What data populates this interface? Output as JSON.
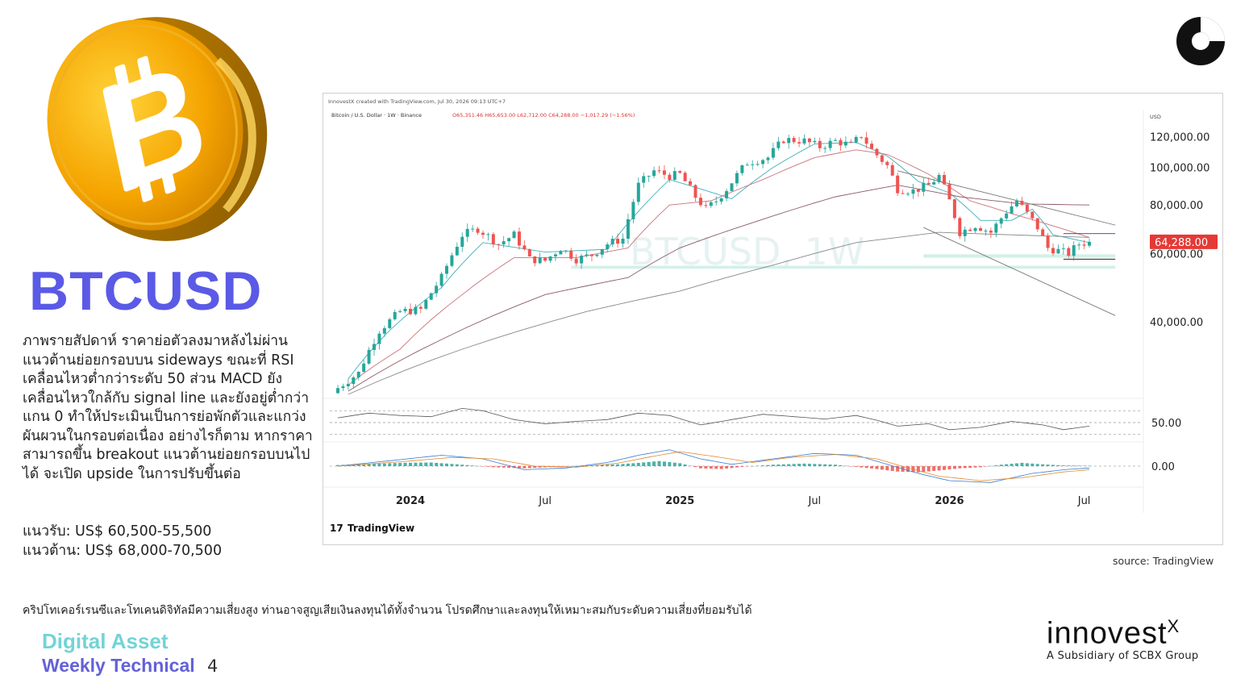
{
  "page": {
    "title": "BTCUSD",
    "description": "ภาพรายสัปดาห์ ราคาย่อตัวลงมาหลังไม่ผ่านแนวต้านย่อยกรอบบน sideways ขณะที่ RSI เคลื่อนไหวต่ำกว่าระดับ 50 ส่วน MACD ยังเคลื่อนไหวใกล้กับ signal line และยังอยู่ต่ำกว่าแกน 0 ทำให้ประเมินเป็นการย่อพักตัวและแกว่งผันผวนในกรอบต่อเนื่อง อย่างไรก็ตาม หากราคาสามารถขึ้น breakout แนวต้านย่อยกรอบบนไปได้ จะเปิด upside ในการปรับขึ้นต่อ",
    "support": "แนวรับ: US$ 60,500-55,500",
    "resistance": "แนวต้าน: US$ 68,000-70,500",
    "source": "source: TradingView",
    "disclaimer": "คริปโทเคอร์เรนซีและโทเคนดิจิทัลมีความเสี่ยงสูง ท่านอาจสูญเสียเงินลงทุนได้ทั้งจำนวน โปรดศึกษาและลงทุนให้เหมาะสมกับระดับความเสี่ยงที่ยอมรับได้",
    "footer_line1": "Digital Asset",
    "footer_line2": "Weekly Technical",
    "page_number": "4",
    "brand_name": "innovest",
    "brand_sup": "X",
    "brand_sub": "A Subsidiary of SCBX Group"
  },
  "chart_data": {
    "type": "candlestick",
    "header_line": "InnovestX created with TradingView.com, Jul 30, 2026 09:13 UTC+7",
    "symbol_line": "Bitcoin / U.S. Dollar · 1W · Binance",
    "ohlc_text": "O65,351.46 H65,653.00 L62,712.00 C64,288.00 −1,017.29 (−1.56%)",
    "currency_label": "USD",
    "watermark": "BTCUSD, 1W",
    "last_price": "64,288.00",
    "last_price_value": 64288,
    "y_ticks": [
      {
        "value": 120000,
        "label": "120,000.00"
      },
      {
        "value": 100000,
        "label": "100,000.00"
      },
      {
        "value": 80000,
        "label": "80,000.00"
      },
      {
        "value": 60000,
        "label": "60,000.00"
      },
      {
        "value": 40000,
        "label": "40,000.00"
      }
    ],
    "x_ticks": [
      {
        "label": "2024",
        "bold": true,
        "week": 14
      },
      {
        "label": "Jul",
        "bold": false,
        "week": 40
      },
      {
        "label": "2025",
        "bold": true,
        "week": 66
      },
      {
        "label": "Jul",
        "bold": false,
        "week": 92
      },
      {
        "label": "2026",
        "bold": true,
        "week": 118
      },
      {
        "label": "Jul",
        "bold": false,
        "week": 144
      }
    ],
    "rsi_level_label": "50.00",
    "macd_zero_label": "0.00",
    "close_path": [
      [
        0,
        27000
      ],
      [
        4,
        29500
      ],
      [
        8,
        38000
      ],
      [
        12,
        42500
      ],
      [
        16,
        43000
      ],
      [
        20,
        52000
      ],
      [
        24,
        67000
      ],
      [
        27,
        69500
      ],
      [
        31,
        63500
      ],
      [
        34,
        67000
      ],
      [
        37,
        58000
      ],
      [
        40,
        57500
      ],
      [
        43,
        62000
      ],
      [
        46,
        58000
      ],
      [
        49,
        59500
      ],
      [
        52,
        63500
      ],
      [
        55,
        65500
      ],
      [
        58,
        90000
      ],
      [
        61,
        98000
      ],
      [
        64,
        95000
      ],
      [
        66,
        96000
      ],
      [
        69,
        84000
      ],
      [
        71,
        78000
      ],
      [
        73,
        82000
      ],
      [
        75,
        88000
      ],
      [
        79,
        103000
      ],
      [
        83,
        106000
      ],
      [
        86,
        118000
      ],
      [
        90,
        117000
      ],
      [
        93,
        113000
      ],
      [
        96,
        117000
      ],
      [
        99,
        114000
      ],
      [
        101,
        121000
      ],
      [
        103,
        111000
      ],
      [
        106,
        101000
      ],
      [
        108,
        88000
      ],
      [
        111,
        87000
      ],
      [
        114,
        90000
      ],
      [
        116,
        95000
      ],
      [
        118,
        82000
      ],
      [
        120,
        68000
      ],
      [
        123,
        71000
      ],
      [
        126,
        68000
      ],
      [
        129,
        77000
      ],
      [
        131,
        82000
      ],
      [
        133,
        76000
      ],
      [
        135,
        70000
      ],
      [
        137,
        62000
      ],
      [
        139,
        61000
      ],
      [
        141,
        60000
      ],
      [
        143,
        63500
      ],
      [
        145,
        64288
      ]
    ],
    "moving_averages": [
      {
        "name": "fast",
        "color": "#40b0b8",
        "path": [
          [
            2,
            28500
          ],
          [
            10,
            38000
          ],
          [
            20,
            49000
          ],
          [
            28,
            64000
          ],
          [
            40,
            60500
          ],
          [
            52,
            61500
          ],
          [
            58,
            77000
          ],
          [
            64,
            93000
          ],
          [
            70,
            88000
          ],
          [
            76,
            83000
          ],
          [
            84,
            100000
          ],
          [
            92,
            115000
          ],
          [
            100,
            116000
          ],
          [
            106,
            107000
          ],
          [
            112,
            92000
          ],
          [
            118,
            86000
          ],
          [
            124,
            73000
          ],
          [
            130,
            73000
          ],
          [
            134,
            78000
          ],
          [
            138,
            67000
          ],
          [
            145,
            64000
          ]
        ]
      },
      {
        "name": "mid",
        "color": "#c9737c",
        "path": [
          [
            2,
            27500
          ],
          [
            12,
            34000
          ],
          [
            24,
            47000
          ],
          [
            34,
            58500
          ],
          [
            46,
            58500
          ],
          [
            56,
            62000
          ],
          [
            64,
            80000
          ],
          [
            72,
            82000
          ],
          [
            82,
            93000
          ],
          [
            92,
            106000
          ],
          [
            100,
            111000
          ],
          [
            106,
            108000
          ],
          [
            114,
            96000
          ],
          [
            122,
            82000
          ],
          [
            130,
            76000
          ],
          [
            136,
            72000
          ],
          [
            145,
            66000
          ]
        ]
      },
      {
        "name": "slow",
        "color": "#8a5a6a",
        "path": [
          [
            2,
            26500
          ],
          [
            20,
            36000
          ],
          [
            40,
            47000
          ],
          [
            56,
            52000
          ],
          [
            66,
            62000
          ],
          [
            80,
            72000
          ],
          [
            96,
            84000
          ],
          [
            108,
            90000
          ],
          [
            120,
            84000
          ],
          [
            132,
            80500
          ],
          [
            145,
            80000
          ]
        ]
      },
      {
        "name": "long",
        "color": "#888888",
        "path": [
          [
            2,
            26000
          ],
          [
            24,
            34000
          ],
          [
            48,
            42500
          ],
          [
            66,
            48000
          ],
          [
            84,
            56000
          ],
          [
            100,
            64000
          ],
          [
            116,
            68000
          ],
          [
            130,
            67000
          ],
          [
            145,
            66000
          ]
        ]
      }
    ],
    "trend_lines": [
      {
        "from": [
          108,
          98000
        ],
        "to": [
          150,
          71000
        ],
        "color": "#777777"
      },
      {
        "from": [
          113,
          70000
        ],
        "to": [
          150,
          41500
        ],
        "color": "#777777"
      },
      {
        "from": [
          140,
          67500
        ],
        "to": [
          150,
          67500
        ],
        "color": "#2a3f9a"
      },
      {
        "from": [
          140,
          58000
        ],
        "to": [
          150,
          58000
        ],
        "color": "#222222"
      }
    ],
    "support_zones": [
      {
        "from": 113,
        "to": 150,
        "low": 58500,
        "high": 59700
      },
      {
        "from": 45,
        "to": 150,
        "low": 54800,
        "high": 55800
      }
    ],
    "rsi_path": [
      [
        0,
        58
      ],
      [
        6,
        66
      ],
      [
        12,
        62
      ],
      [
        18,
        60
      ],
      [
        24,
        74
      ],
      [
        28,
        70
      ],
      [
        34,
        55
      ],
      [
        40,
        48
      ],
      [
        46,
        52
      ],
      [
        52,
        55
      ],
      [
        58,
        66
      ],
      [
        64,
        62
      ],
      [
        70,
        46
      ],
      [
        76,
        55
      ],
      [
        82,
        64
      ],
      [
        88,
        60
      ],
      [
        94,
        56
      ],
      [
        100,
        62
      ],
      [
        104,
        54
      ],
      [
        108,
        44
      ],
      [
        114,
        48
      ],
      [
        118,
        38
      ],
      [
        124,
        42
      ],
      [
        130,
        52
      ],
      [
        136,
        46
      ],
      [
        140,
        38
      ],
      [
        145,
        44
      ]
    ],
    "macd_line": [
      [
        0,
        0
      ],
      [
        10,
        1.5
      ],
      [
        20,
        3
      ],
      [
        28,
        2
      ],
      [
        36,
        -1
      ],
      [
        44,
        -0.5
      ],
      [
        52,
        1
      ],
      [
        58,
        3
      ],
      [
        64,
        4.5
      ],
      [
        70,
        2
      ],
      [
        76,
        0.5
      ],
      [
        84,
        2
      ],
      [
        92,
        3.5
      ],
      [
        100,
        3
      ],
      [
        106,
        0.5
      ],
      [
        112,
        -2
      ],
      [
        118,
        -4
      ],
      [
        126,
        -4.5
      ],
      [
        134,
        -2
      ],
      [
        140,
        -1
      ],
      [
        145,
        -0.5
      ]
    ],
    "signal_line": [
      [
        0,
        0
      ],
      [
        12,
        1.2
      ],
      [
        22,
        2.4
      ],
      [
        30,
        2
      ],
      [
        38,
        0
      ],
      [
        46,
        -0.3
      ],
      [
        54,
        0.8
      ],
      [
        60,
        2.5
      ],
      [
        66,
        4
      ],
      [
        72,
        2.8
      ],
      [
        80,
        1
      ],
      [
        88,
        2.5
      ],
      [
        96,
        3.2
      ],
      [
        104,
        2
      ],
      [
        110,
        -0.5
      ],
      [
        116,
        -2.8
      ],
      [
        124,
        -4
      ],
      [
        132,
        -3.2
      ],
      [
        140,
        -1.6
      ],
      [
        145,
        -1
      ]
    ],
    "macd_hist": [
      [
        0,
        0.3
      ],
      [
        6,
        0.6
      ],
      [
        12,
        0.9
      ],
      [
        18,
        1
      ],
      [
        24,
        0.4
      ],
      [
        30,
        -0.3
      ],
      [
        36,
        -0.6
      ],
      [
        42,
        -0.2
      ],
      [
        48,
        0.2
      ],
      [
        54,
        0.5
      ],
      [
        58,
        0.9
      ],
      [
        62,
        1.4
      ],
      [
        66,
        0.8
      ],
      [
        70,
        -0.6
      ],
      [
        74,
        -0.8
      ],
      [
        78,
        -0.2
      ],
      [
        84,
        0.4
      ],
      [
        90,
        0.7
      ],
      [
        96,
        0.4
      ],
      [
        100,
        -0.2
      ],
      [
        104,
        -0.8
      ],
      [
        108,
        -1.5
      ],
      [
        112,
        -1.7
      ],
      [
        116,
        -1.2
      ],
      [
        120,
        -0.6
      ],
      [
        124,
        -0.3
      ],
      [
        128,
        0.4
      ],
      [
        132,
        0.9
      ],
      [
        136,
        0.5
      ],
      [
        140,
        0.2
      ],
      [
        145,
        0.1
      ]
    ],
    "logo_text": "TradingView",
    "colors": {
      "up": "#26a69a",
      "down": "#ef5350",
      "last_price_bg": "#e53935"
    }
  }
}
